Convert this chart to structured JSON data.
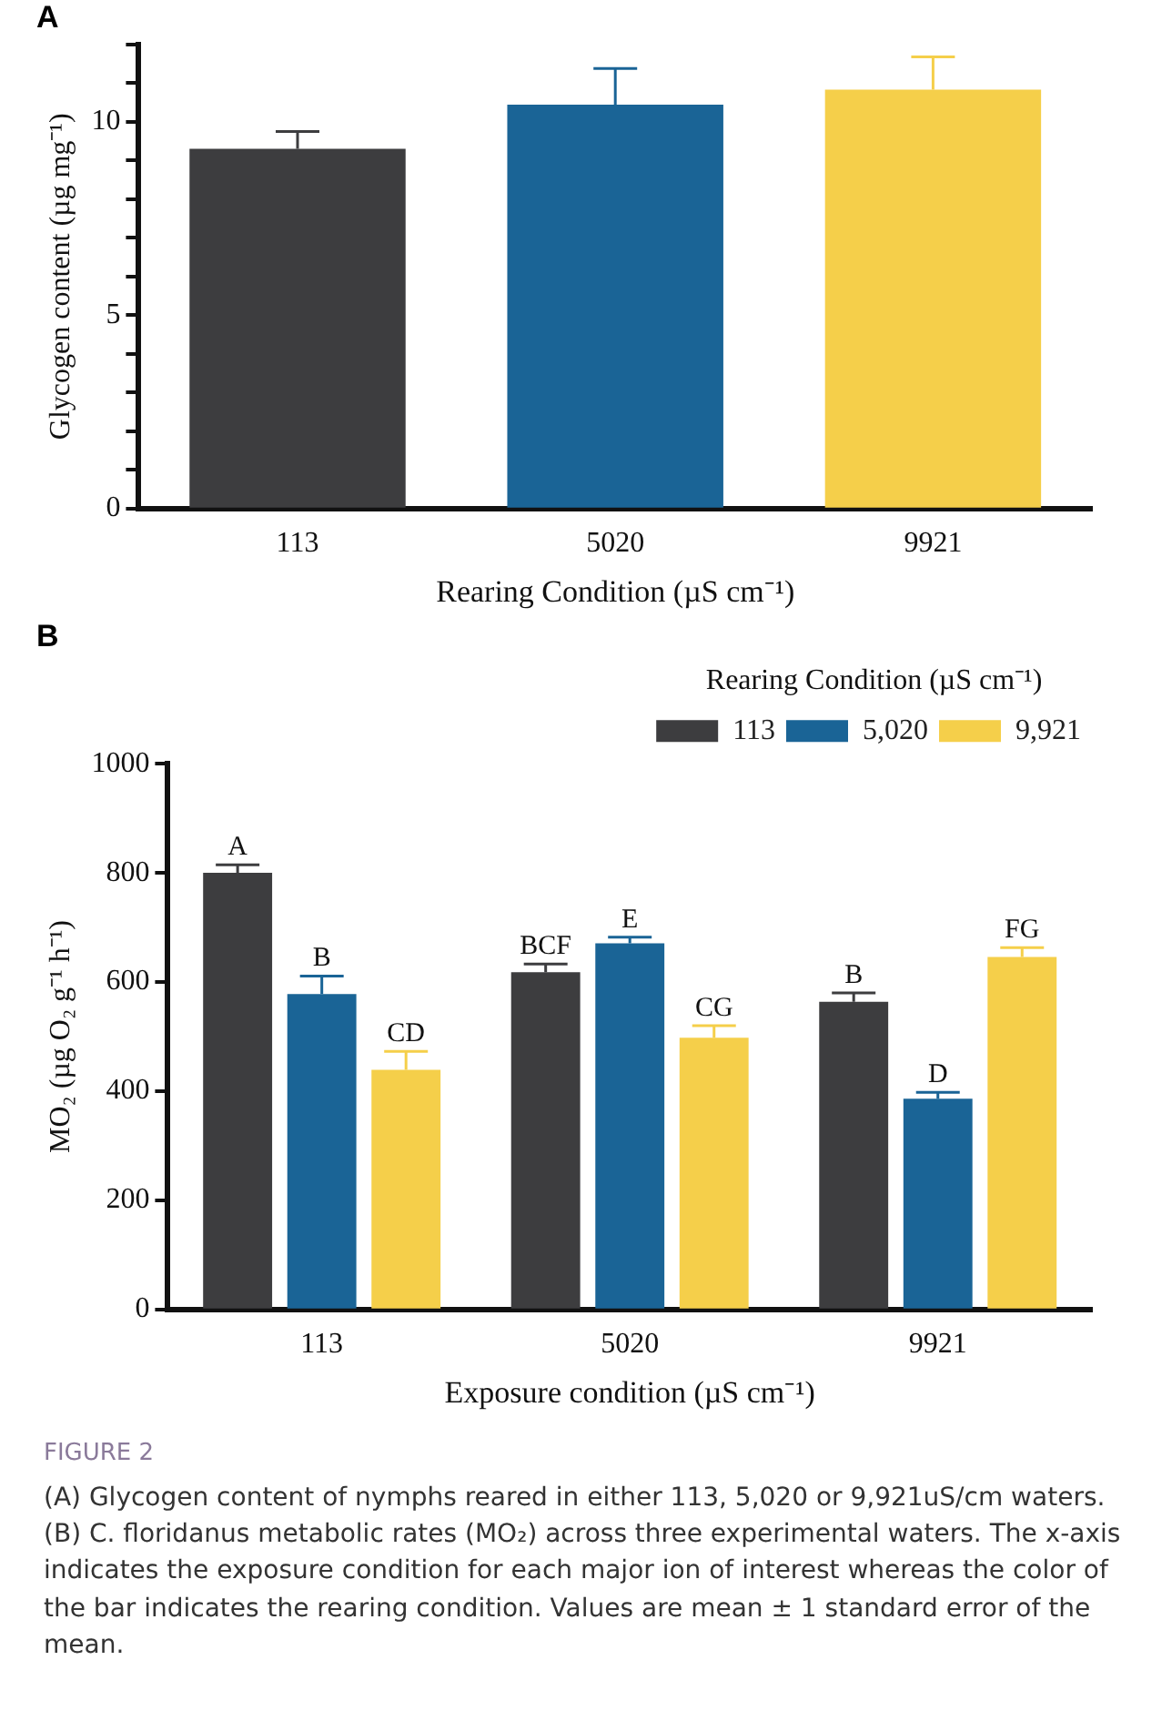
{
  "chart_data": [
    {
      "type": "bar",
      "title": "A",
      "xlabel": "Rearing Condition (µS cm⁻¹)",
      "ylabel": "Glycogen content (µg mg⁻¹)",
      "categories": [
        "113",
        "5020",
        "9921"
      ],
      "values": [
        9.3,
        10.44,
        10.83
      ],
      "colors": [
        "#3d3d3f",
        "#1a6496",
        "#f5cf4a"
      ],
      "errors": [
        0.45,
        0.94,
        0.85
      ],
      "ylim": [
        0,
        12
      ],
      "yticks": [
        0,
        {
          "value": 1,
          "label": null
        },
        {
          "value": 2,
          "label": null
        },
        {
          "value": 3,
          "label": null
        },
        {
          "value": 4,
          "label": null
        },
        5,
        {
          "value": 6,
          "label": null
        },
        {
          "value": 7,
          "label": null
        },
        {
          "value": 8,
          "label": null
        },
        {
          "value": 9,
          "label": null
        },
        10,
        {
          "value": 11,
          "label": null
        },
        {
          "value": 12,
          "label": null
        }
      ]
    },
    {
      "type": "bar",
      "title": "B",
      "xlabel": "Exposure condition (µS cm⁻¹)",
      "ylabel": "MO₂ (µg O₂ g⁻¹ h⁻¹)",
      "legend_title": "Rearing Condition (µS cm⁻¹)",
      "legend": "top right",
      "categories": [
        "113",
        "5020",
        "9921"
      ],
      "series": [
        {
          "name": "113",
          "color": "#3d3d3f",
          "values": [
            800,
            618,
            564
          ],
          "errors": [
            15,
            15,
            16
          ],
          "value_labels": [
            "A",
            "BCF",
            "B"
          ]
        },
        {
          "name": "5,020",
          "color": "#1a6496",
          "values": [
            578,
            671,
            386
          ],
          "errors": [
            33,
            11,
            12
          ],
          "value_labels": [
            "B",
            "E",
            "D"
          ]
        },
        {
          "name": "9,921",
          "color": "#f5cf4a",
          "values": [
            439,
            498,
            646
          ],
          "errors": [
            34,
            22,
            17
          ],
          "value_labels": [
            "CD",
            "CG",
            "FG"
          ]
        }
      ],
      "ylim": [
        0,
        1000
      ],
      "yticks": [
        0,
        200,
        400,
        600,
        800,
        1000
      ],
      "annotations": [
        "FIGURE 2",
        "(A) Glycogen content of nymphs reared in either 113, 5,020 or 9,921uS/cm waters. (B) C. floridanus metabolic rates (MO₂) across three experimental waters. The x-axis indicates the exposure condition for each major ion of interest whereas the color of the bar indicates the rearing condition. Values are mean ± 1 standard error of the mean."
      ]
    }
  ]
}
